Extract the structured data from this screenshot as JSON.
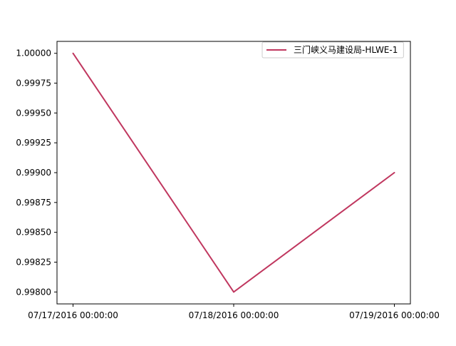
{
  "chart_data": {
    "type": "line",
    "title": "",
    "xlabel": "",
    "ylabel": "",
    "x": [
      "07/17/2016 00:00:00",
      "07/18/2016 00:00:00",
      "07/19/2016 00:00:00"
    ],
    "series": [
      {
        "name": "三门峡义马建设局-HLWE-1",
        "color": "#c0375f",
        "values": [
          1.0,
          0.998,
          0.999
        ]
      }
    ],
    "ylim": [
      0.9979,
      1.0001
    ],
    "yticks": [
      "0.99800",
      "0.99825",
      "0.99850",
      "0.99875",
      "0.99900",
      "0.99925",
      "0.99950",
      "0.99975",
      "1.00000"
    ],
    "ytick_values": [
      0.998,
      0.99825,
      0.9985,
      0.99875,
      0.999,
      0.99925,
      0.9995,
      0.99975,
      1.0
    ],
    "xticks": [
      "07/17/2016 00:00:00",
      "07/18/2016 00:00:00",
      "07/19/2016 00:00:00"
    ],
    "grid": false,
    "legend_position": "top-right"
  }
}
